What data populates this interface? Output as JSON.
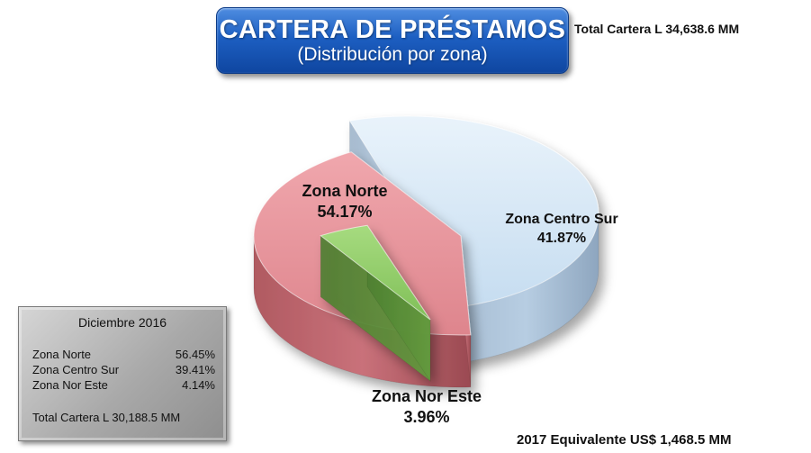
{
  "header": {
    "title": "CARTERA DE PRÉSTAMOS",
    "subtitle": "(Distribución por zona)",
    "total_cartera": "Total Cartera L 34,638.6  MM"
  },
  "footer": {
    "equivalente": "2017 Equivalente US$ 1,468.5 MM"
  },
  "chart_data": {
    "type": "pie",
    "slices": [
      {
        "label": "Zona Norte",
        "value": 54.17,
        "value_label": "54.17%",
        "color": "#cfe4f5"
      },
      {
        "label": "Zona Centro Sur",
        "value": 41.87,
        "value_label": "41.87%",
        "color": "#e79097"
      },
      {
        "label": "Zona Nor Este",
        "value": 3.96,
        "value_label": "3.96%",
        "color": "#92cc6a"
      }
    ]
  },
  "december_box": {
    "title": "Diciembre 2016",
    "rows": [
      {
        "name": "Zona Norte",
        "value": "56.45%"
      },
      {
        "name": "Zona Centro Sur",
        "value": "39.41%"
      },
      {
        "name": "Zona Nor Este",
        "value": "4.14%"
      }
    ],
    "total": "Total Cartera  L 30,188.5 MM"
  }
}
